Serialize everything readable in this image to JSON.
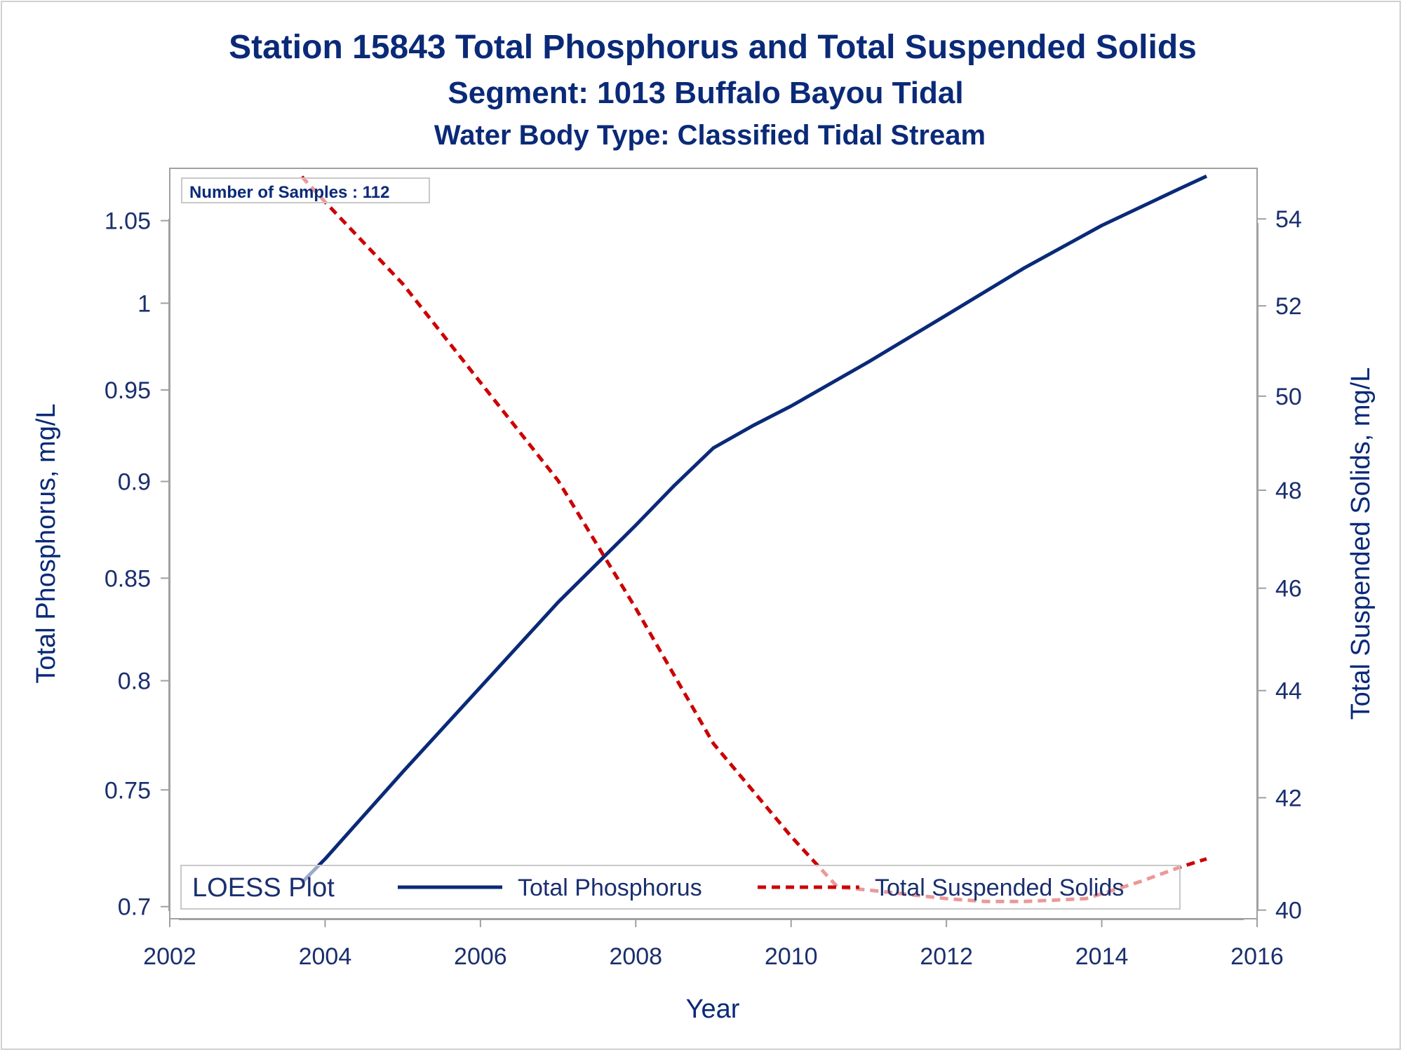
{
  "titles": {
    "line1": "Station 15843  Total Phosphorus and Total Suspended Solids",
    "line2": "Segment: 1013  Buffalo Bayou Tidal",
    "line3": "Water Body Type: Classified Tidal Stream"
  },
  "inset": {
    "text": "Number of Samples : 112"
  },
  "legend": {
    "title": "LOESS Plot"
  },
  "colors": {
    "tp": "#0a2a78",
    "tss": "#cc0000",
    "text": "#1a2f6e",
    "frame": "#a0a0a0"
  },
  "chart_data": {
    "type": "line",
    "xlabel": "Year",
    "ylabel": "Total Phosphorus, mg/L",
    "y2label": "Total Suspended Solids, mg/L",
    "xlim": [
      2002,
      2016
    ],
    "ylim": [
      0.695,
      1.083
    ],
    "y2lim": [
      39.85,
      55.2
    ],
    "y_scale": "log",
    "y2_scale": "log",
    "xticks": [
      2002,
      2004,
      2006,
      2008,
      2010,
      2012,
      2014,
      2016
    ],
    "yticks": [
      0.7,
      0.75,
      0.8,
      0.85,
      0.9,
      0.95,
      1,
      1.05
    ],
    "y2ticks": [
      40,
      42,
      44,
      46,
      48,
      50,
      52,
      54
    ],
    "legend_position": "bottom-inside",
    "grid": false,
    "series": [
      {
        "name": "Total Phosphorus",
        "axis": "left",
        "style": "solid",
        "x": [
          2003.7,
          2004.0,
          2005.0,
          2006.0,
          2007.0,
          2008.0,
          2008.5,
          2009.0,
          2009.5,
          2010.0,
          2011.0,
          2012.0,
          2013.0,
          2014.0,
          2015.0,
          2015.35
        ],
        "y": [
          0.71,
          0.72,
          0.758,
          0.797,
          0.838,
          0.877,
          0.898,
          0.918,
          0.93,
          0.941,
          0.966,
          0.993,
          1.021,
          1.047,
          1.07,
          1.078
        ]
      },
      {
        "name": "Total Suspended Solids",
        "axis": "right",
        "style": "dashed",
        "x": [
          2003.7,
          2004.0,
          2005.0,
          2006.0,
          2007.0,
          2008.0,
          2009.0,
          2010.0,
          2010.6,
          2011.0,
          2012.0,
          2012.5,
          2013.0,
          2013.8,
          2014.5,
          2015.0,
          2015.35
        ],
        "y": [
          55.0,
          54.4,
          52.5,
          50.3,
          48.2,
          45.6,
          43.0,
          41.3,
          40.4,
          40.35,
          40.2,
          40.15,
          40.15,
          40.2,
          40.5,
          40.75,
          40.9
        ]
      }
    ]
  }
}
